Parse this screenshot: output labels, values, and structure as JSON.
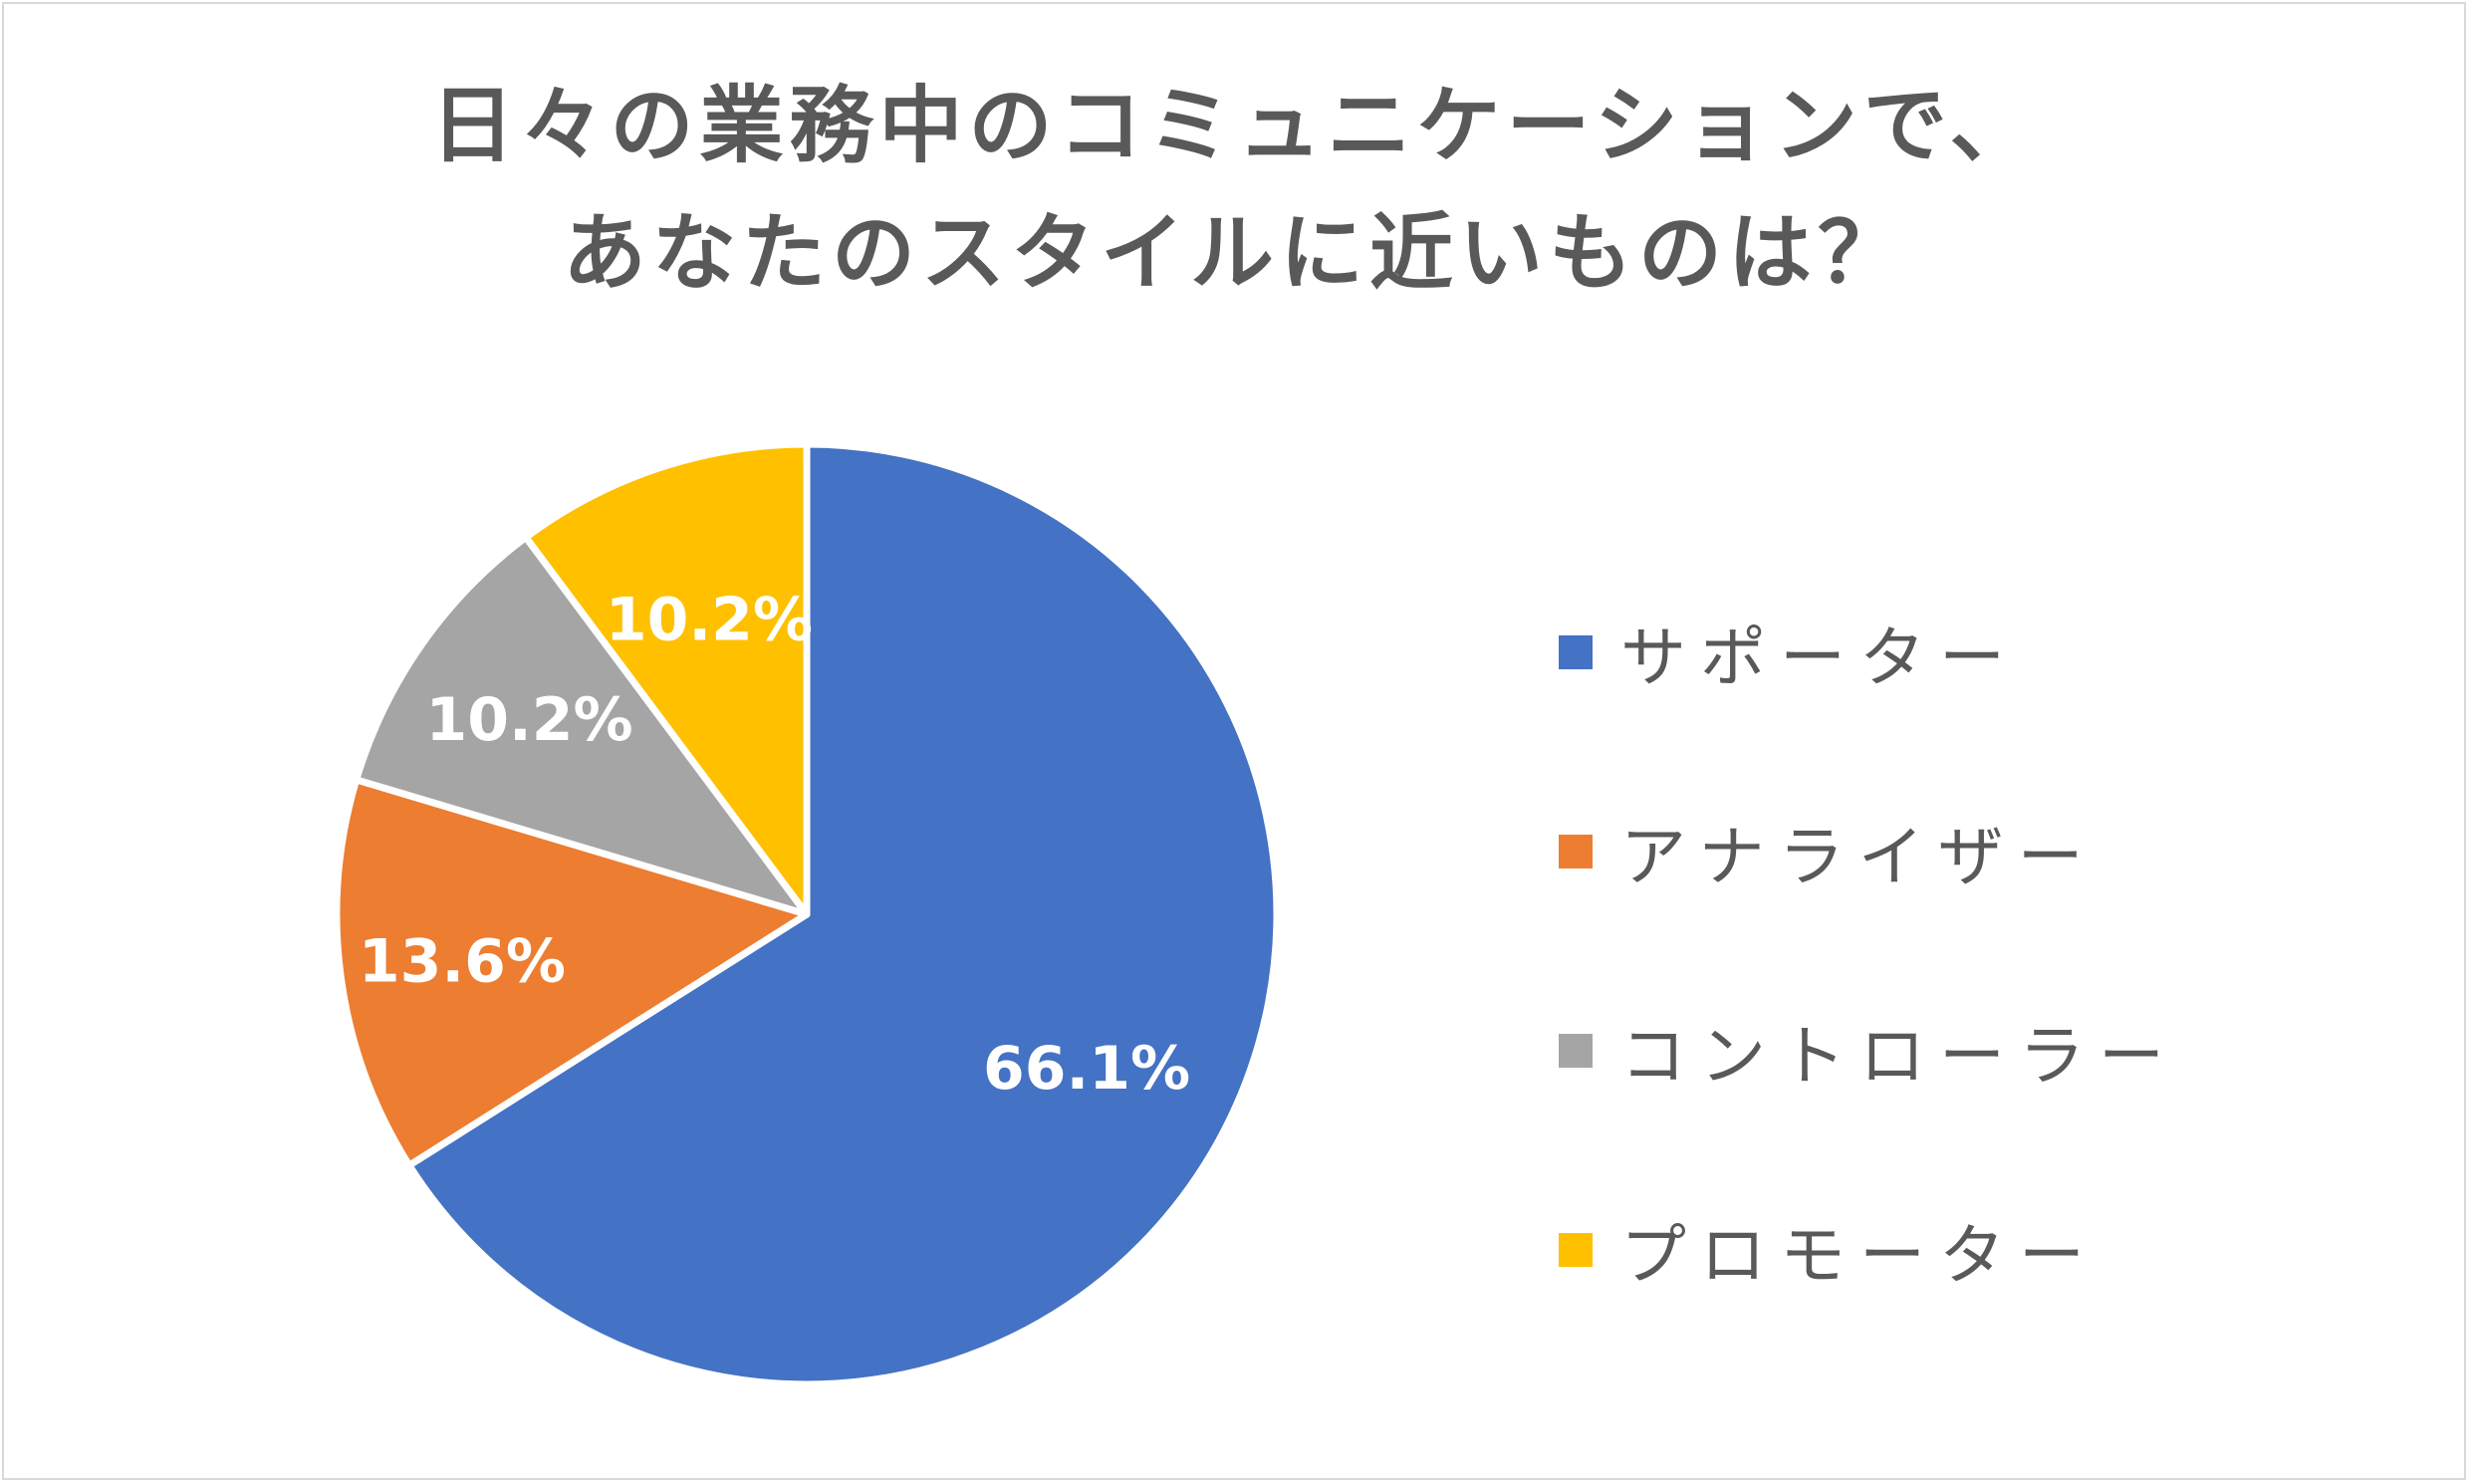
{
  "chart_data": {
    "type": "pie",
    "title_lines": [
      "日々の業務中のコミュニケーションで、",
      "あなたのスタイルに近いものは？"
    ],
    "categories": [
      "サポーター",
      "アナライザー",
      "コントローラー",
      "プロモーター"
    ],
    "values": [
      66.1,
      13.6,
      10.2,
      10.2
    ],
    "data_labels": [
      "66.1%",
      "13.6%",
      "10.2%",
      "10.2%"
    ],
    "colors": [
      "#4472C4",
      "#ED7D31",
      "#A5A5A5",
      "#FFC000"
    ],
    "start_angle_deg": 0,
    "direction": "clockwise",
    "legend_position": "right"
  }
}
